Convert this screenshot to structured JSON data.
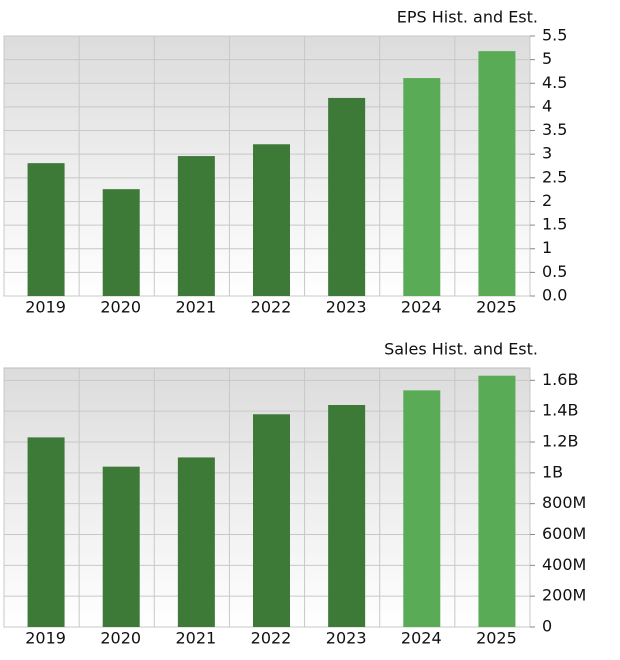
{
  "chart_data": [
    {
      "type": "bar",
      "title": "EPS Hist. and Est.",
      "categories": [
        "2019",
        "2020",
        "2021",
        "2022",
        "2023",
        "2024",
        "2025"
      ],
      "values": [
        2.81,
        2.26,
        2.96,
        3.21,
        4.19,
        4.61,
        5.18
      ],
      "colors": [
        "#3d7a38",
        "#3d7a38",
        "#3d7a38",
        "#3d7a38",
        "#3d7a38",
        "#5aab55",
        "#5aab55"
      ],
      "ylim": [
        0,
        5.5
      ],
      "yticks": [
        {
          "value": 0,
          "label": "0.0"
        },
        0.5,
        1,
        1.5,
        2,
        2.5,
        3,
        3.5,
        4,
        4.5,
        5,
        5.5
      ],
      "grid": true
    },
    {
      "type": "bar",
      "title": "Sales Hist. and Est.",
      "categories": [
        "2019",
        "2020",
        "2021",
        "2022",
        "2023",
        "2024",
        "2025"
      ],
      "values": [
        1230000000,
        1040000000,
        1100000000,
        1380000000,
        1440000000,
        1535000000,
        1630000000
      ],
      "colors": [
        "#3d7a38",
        "#3d7a38",
        "#3d7a38",
        "#3d7a38",
        "#3d7a38",
        "#5aab55",
        "#5aab55"
      ],
      "ylim": [
        0,
        1680000000
      ],
      "yticks": [
        0,
        {
          "value": 200000000,
          "label": "200M"
        },
        {
          "value": 400000000,
          "label": "400M"
        },
        {
          "value": 600000000,
          "label": "600M"
        },
        {
          "value": 800000000,
          "label": "800M"
        },
        {
          "value": 1000000000,
          "label": "1B"
        },
        {
          "value": 1200000000,
          "label": "1.2B"
        },
        {
          "value": 1400000000,
          "label": "1.4B"
        },
        {
          "value": 1600000000,
          "label": "1.6B"
        }
      ],
      "grid": true
    }
  ]
}
